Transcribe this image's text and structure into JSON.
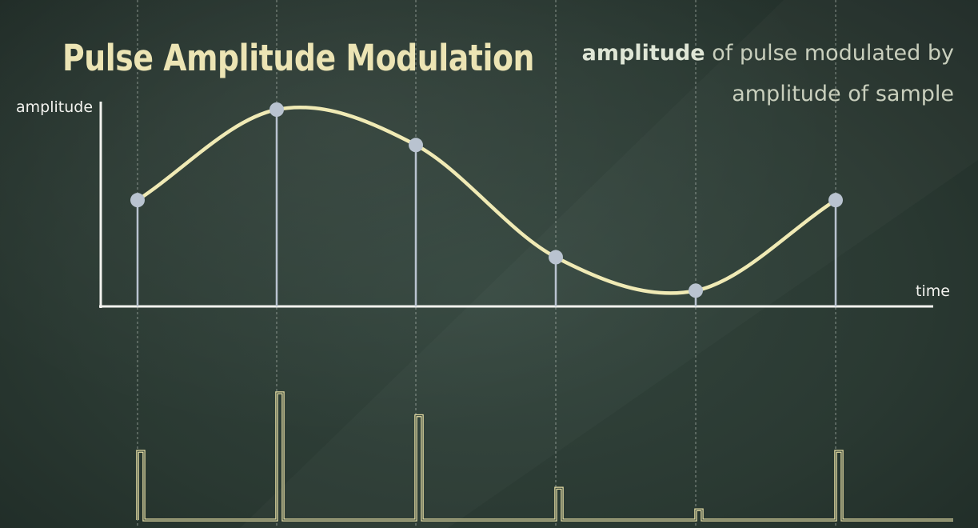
{
  "title": "Pulse Amplitude Modulation",
  "subtitle": {
    "emphasis": "amplitude",
    "line1_rest": " of pulse modulated by",
    "line2": "amplitude of sample"
  },
  "axes": {
    "y_label": "amplitude",
    "x_label": "time"
  },
  "samples": [
    {
      "index": 1,
      "level": 0.54
    },
    {
      "index": 2,
      "level": 1.0
    },
    {
      "index": 3,
      "level": 0.82
    },
    {
      "index": 4,
      "level": 0.25
    },
    {
      "index": 5,
      "level": 0.08
    },
    {
      "index": 6,
      "level": 0.54
    }
  ],
  "colors": {
    "background": "#2c3c35",
    "signal_curve": "#f0eab5",
    "sample_dot": "#b9c3d0",
    "sample_stem": "#b9c3d0",
    "axis": "#f2f2ee",
    "pulse_train": "#e8dfa6",
    "guide_lines": "#a9b2aa"
  }
}
